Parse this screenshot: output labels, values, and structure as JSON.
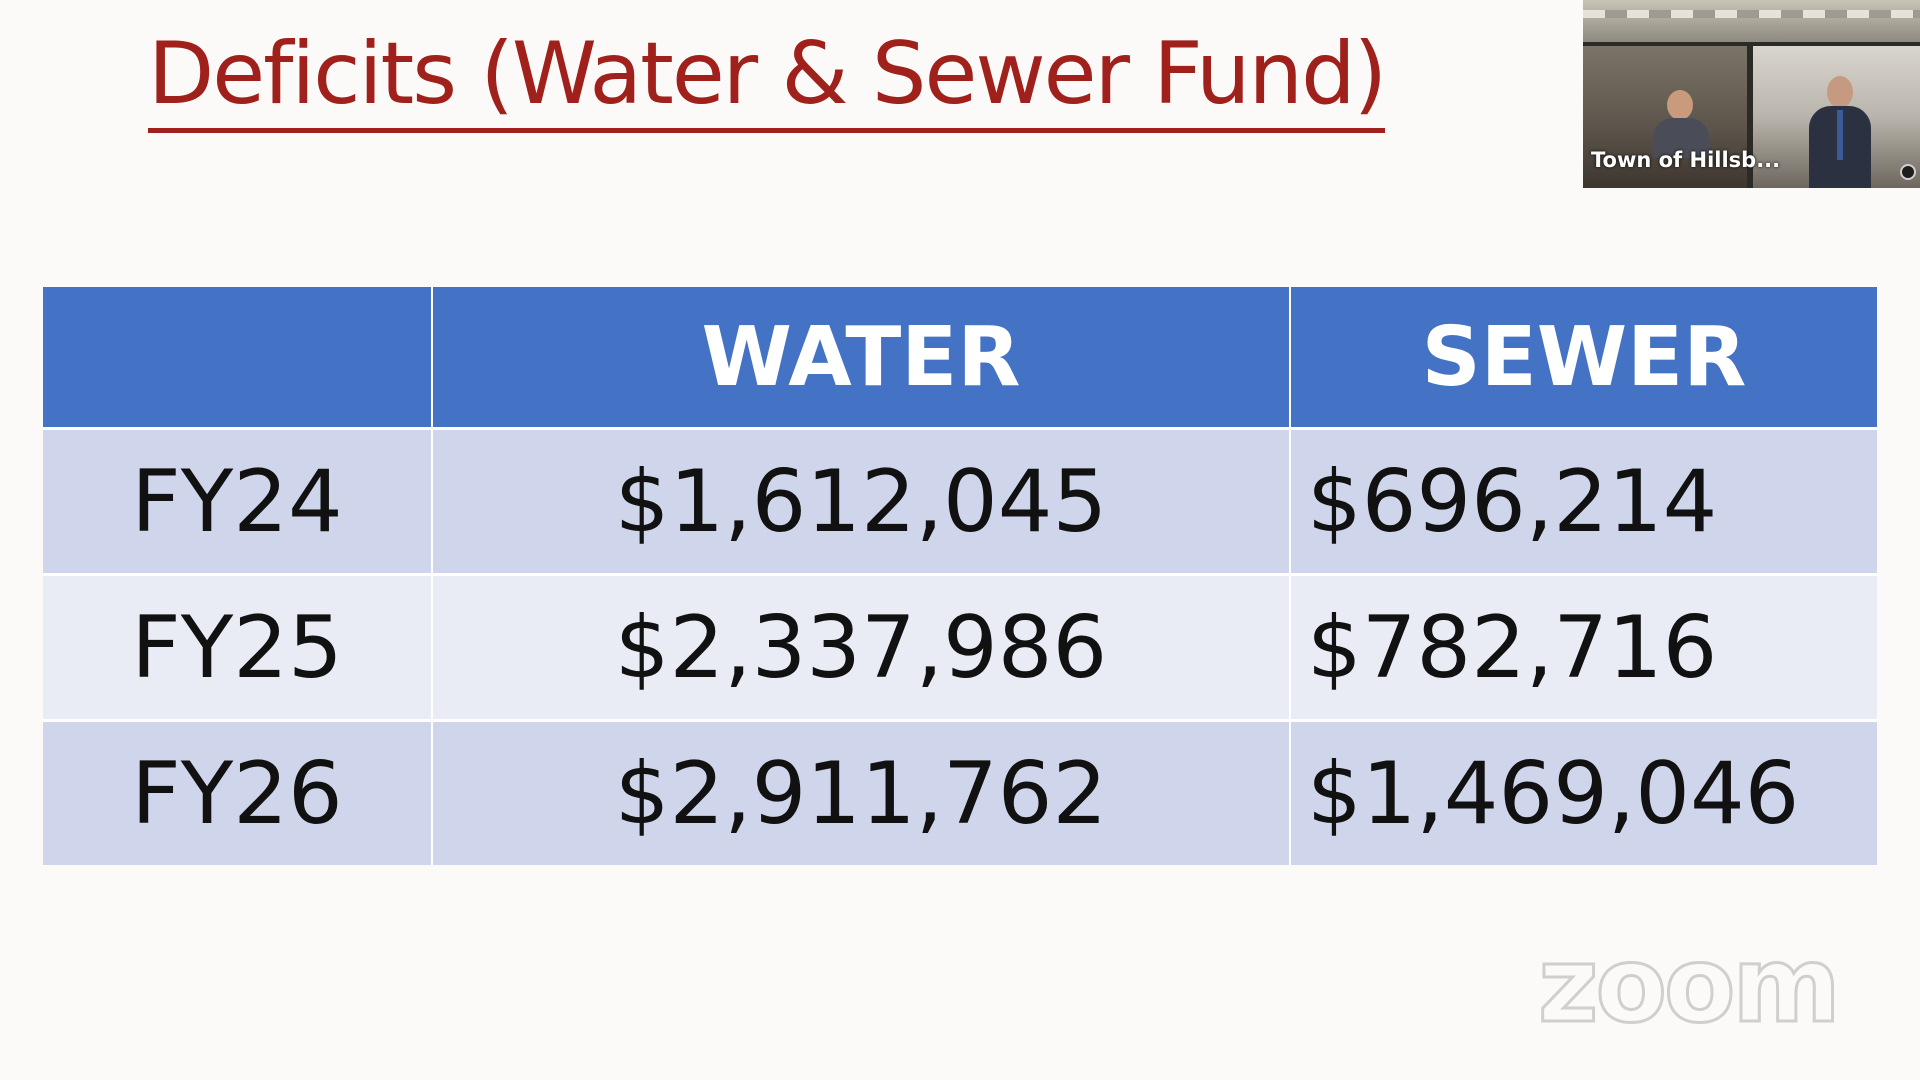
{
  "slide": {
    "title": "Deficits (Water & Sewer Fund)",
    "table": {
      "headers": [
        "",
        "WATER",
        "SEWER"
      ],
      "rows": [
        {
          "year": "FY24",
          "water": "$1,612,045",
          "sewer": "$696,214"
        },
        {
          "year": "FY25",
          "water": "$2,337,986",
          "sewer": "$782,716"
        },
        {
          "year": "FY26",
          "water": "$2,911,762",
          "sewer": "$1,469,046"
        }
      ]
    }
  },
  "video": {
    "participant_name": "Town of Hillsb...",
    "mic_icon": "microphone-icon"
  },
  "watermark": {
    "text": "zoom"
  },
  "colors": {
    "title": "#a0201c",
    "header_bg": "#4472c4",
    "row_odd": "#cfd5ea",
    "row_even": "#e9ebf5"
  }
}
